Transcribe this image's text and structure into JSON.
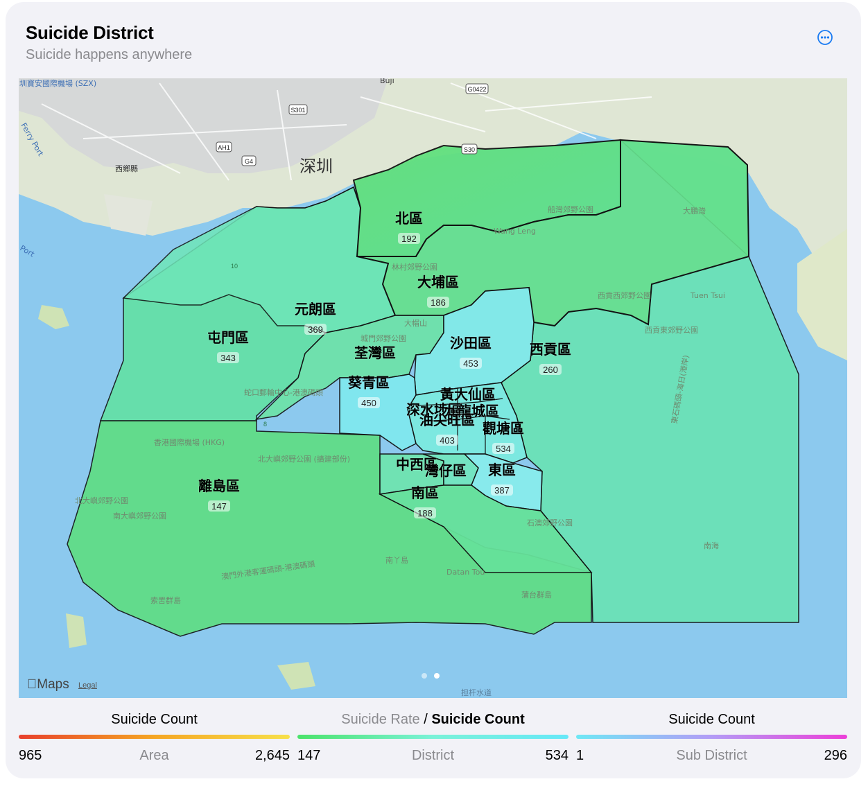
{
  "card": {
    "title": "Suicide District",
    "subtitle": "Suicide happens anywhere",
    "more_icon": "ellipsis-circle-icon"
  },
  "map": {
    "attribution_logo": "Maps",
    "attribution_legal": "Legal",
    "page_indicator": {
      "count": 2,
      "active": 2
    },
    "basemap_labels": {
      "shenzhen": "深圳",
      "airport_szx": "圳寶安國際機場 (SZX)",
      "buji": "Buji",
      "xixiang": "西鄉縣",
      "ferry_port": "Ferry Port",
      "port": "Port",
      "g0422": "G0422",
      "s301": "S301",
      "ah1": "AH1",
      "g4": "G4",
      "s30": "S30",
      "route10": "10",
      "route8": "8",
      "hkg_airport": "香港國際機場 (HKG)",
      "lantau_north_park": "北大嶼郊野公園 (擴建部份)",
      "lantau_north_park2": "北大嶼郊野公園",
      "lantau_south_park": "南大嶼郊野公園",
      "pat_sin_leng": "船灣郊野公園",
      "wang_leng": "Wang Leng",
      "tai_mo_shan": "大帽山",
      "shing_mun": "城門郊野公園",
      "kam_tin_park": "林村郊野公園",
      "sai_kung_west": "西貢西郊野公園",
      "sai_kung_east": "西貢東郊野公園",
      "tuen_tsui": "Tuen Tsui",
      "big_wave_bay": "大鵬灣",
      "shek_o_park": "石澳郊野公園",
      "lamma": "南丫島",
      "datan_tou": "Datan Tou",
      "po_toi": "蒲台群島",
      "soko": "索罟群島",
      "macau_ferry": "澳門外港客運碼頭-港澳碼頭",
      "shekou_ferry": "蛇口郵輪中心-港澳碼頭",
      "south_sea": "南海",
      "waterway": "担杆水道",
      "east_channel": "東石碼頭-海日(港岸)"
    },
    "districts": [
      {
        "name": "北區",
        "value": 192
      },
      {
        "name": "大埔區",
        "value": 186
      },
      {
        "name": "元朗區",
        "value": 369
      },
      {
        "name": "屯門區",
        "value": 343
      },
      {
        "name": "荃灣區",
        "value": null
      },
      {
        "name": "沙田區",
        "value": 453
      },
      {
        "name": "西貢區",
        "value": 260
      },
      {
        "name": "葵青區",
        "value": 450
      },
      {
        "name": "黃大仙區",
        "value": null
      },
      {
        "name": "深水埗區",
        "value": null
      },
      {
        "name": "九龍城區",
        "value": null
      },
      {
        "name": "油尖旺區",
        "value": 403
      },
      {
        "name": "觀塘區",
        "value": 534
      },
      {
        "name": "離島區",
        "value": 147
      },
      {
        "name": "中西區",
        "value": null
      },
      {
        "name": "灣仔區",
        "value": null
      },
      {
        "name": "東區",
        "value": 387
      },
      {
        "name": "南區",
        "value": 188
      }
    ],
    "colors": {
      "water": "#8cc9ee",
      "land": "#dfe8c9",
      "border": "#111111"
    }
  },
  "legends": [
    {
      "title_main": "Suicide Count",
      "min": "965",
      "label": "Area",
      "max": "2,645",
      "gradient": [
        "#e8402c",
        "#f5a623",
        "#f7e04a"
      ]
    },
    {
      "title_dim": "Suicide Rate",
      "title_sep": " / ",
      "title_main": "Suicide Count",
      "min": "147",
      "label": "District",
      "max": "534",
      "gradient": [
        "#4be36a",
        "#7af2d8",
        "#66e8f8"
      ]
    },
    {
      "title_main": "Suicide Count",
      "min": "1",
      "label": "Sub District",
      "max": "296",
      "gradient": [
        "#6ee8f5",
        "#b39cf6",
        "#ec3fd8"
      ]
    }
  ]
}
